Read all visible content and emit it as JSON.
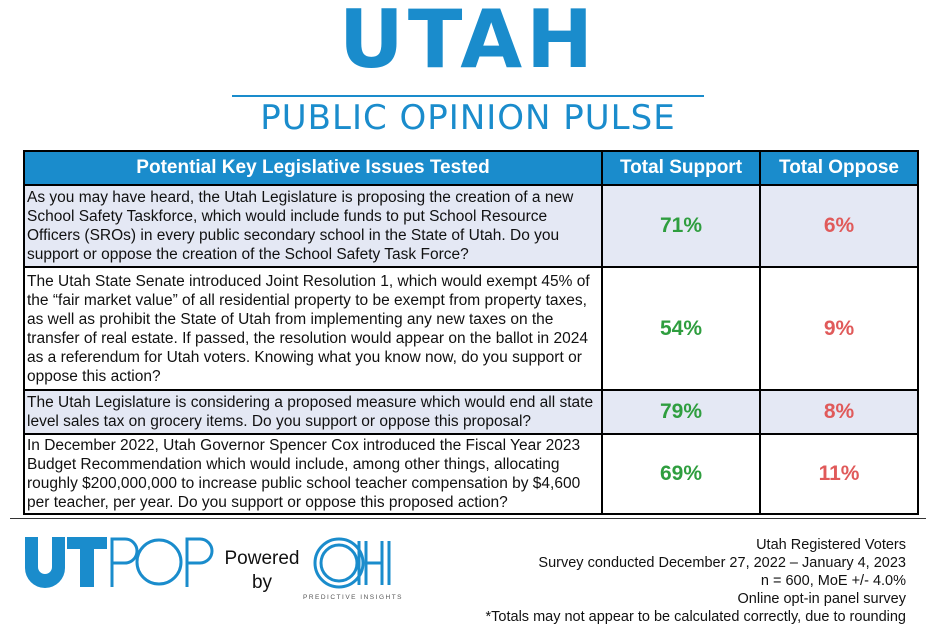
{
  "header": {
    "title": "Utah",
    "subtitle": "PUBLIC OPINION PULSE"
  },
  "table": {
    "columns": [
      "Potential Key Legislative Issues Tested",
      "Total Support",
      "Total Oppose"
    ],
    "rows": [
      {
        "question": "As you may have heard, the Utah Legislature is proposing the creation of a new School Safety Taskforce, which would include funds to put School Resource Officers (SROs) in every public secondary school in the State of Utah. Do you support or oppose the creation of the School Safety Task Force?",
        "support": "71%",
        "oppose": "6%"
      },
      {
        "question": "The Utah State Senate introduced Joint Resolution 1, which would exempt 45% of the “fair market value” of all residential property to be exempt from property taxes, as well as prohibit the State of Utah from implementing any new taxes on the transfer of real estate.  If passed, the resolution would appear on the ballot in 2024 as a referendum for Utah voters. Knowing what you know now, do you support or oppose this action?",
        "support": "54%",
        "oppose": "9%"
      },
      {
        "question": "The Utah Legislature is considering a proposed measure which would end all state level sales tax on grocery items.  Do you support or oppose this proposal?",
        "support": "79%",
        "oppose": "8%"
      },
      {
        "question": "In December 2022, Utah Governor Spencer Cox introduced the Fiscal Year 2023 Budget Recommendation which would include, among other things, allocating roughly $200,000,000 to increase public school teacher compensation by $4,600 per teacher, per year.   Do you support or oppose this proposed action?",
        "support": "69%",
        "oppose": "11%"
      }
    ]
  },
  "footer": {
    "brand_logo": "UTPOP",
    "powered_by": [
      "Powered",
      "by"
    ],
    "partner_logo": "OH",
    "partner_name": "PREDICTIVE INSIGHTS",
    "notes": [
      "Utah Registered Voters",
      "Survey conducted December 27, 2022 – January 4, 2023",
      "n = 600, MoE +/- 4.0%",
      "Online opt-in panel survey",
      "*Totals may not appear to be calculated correctly, due to rounding"
    ]
  },
  "colors": {
    "brand_blue": "#1a8ccc",
    "support_green": "#2f9e3f",
    "oppose_red": "#e05a5a",
    "row_shade": "#e4e8f4"
  }
}
